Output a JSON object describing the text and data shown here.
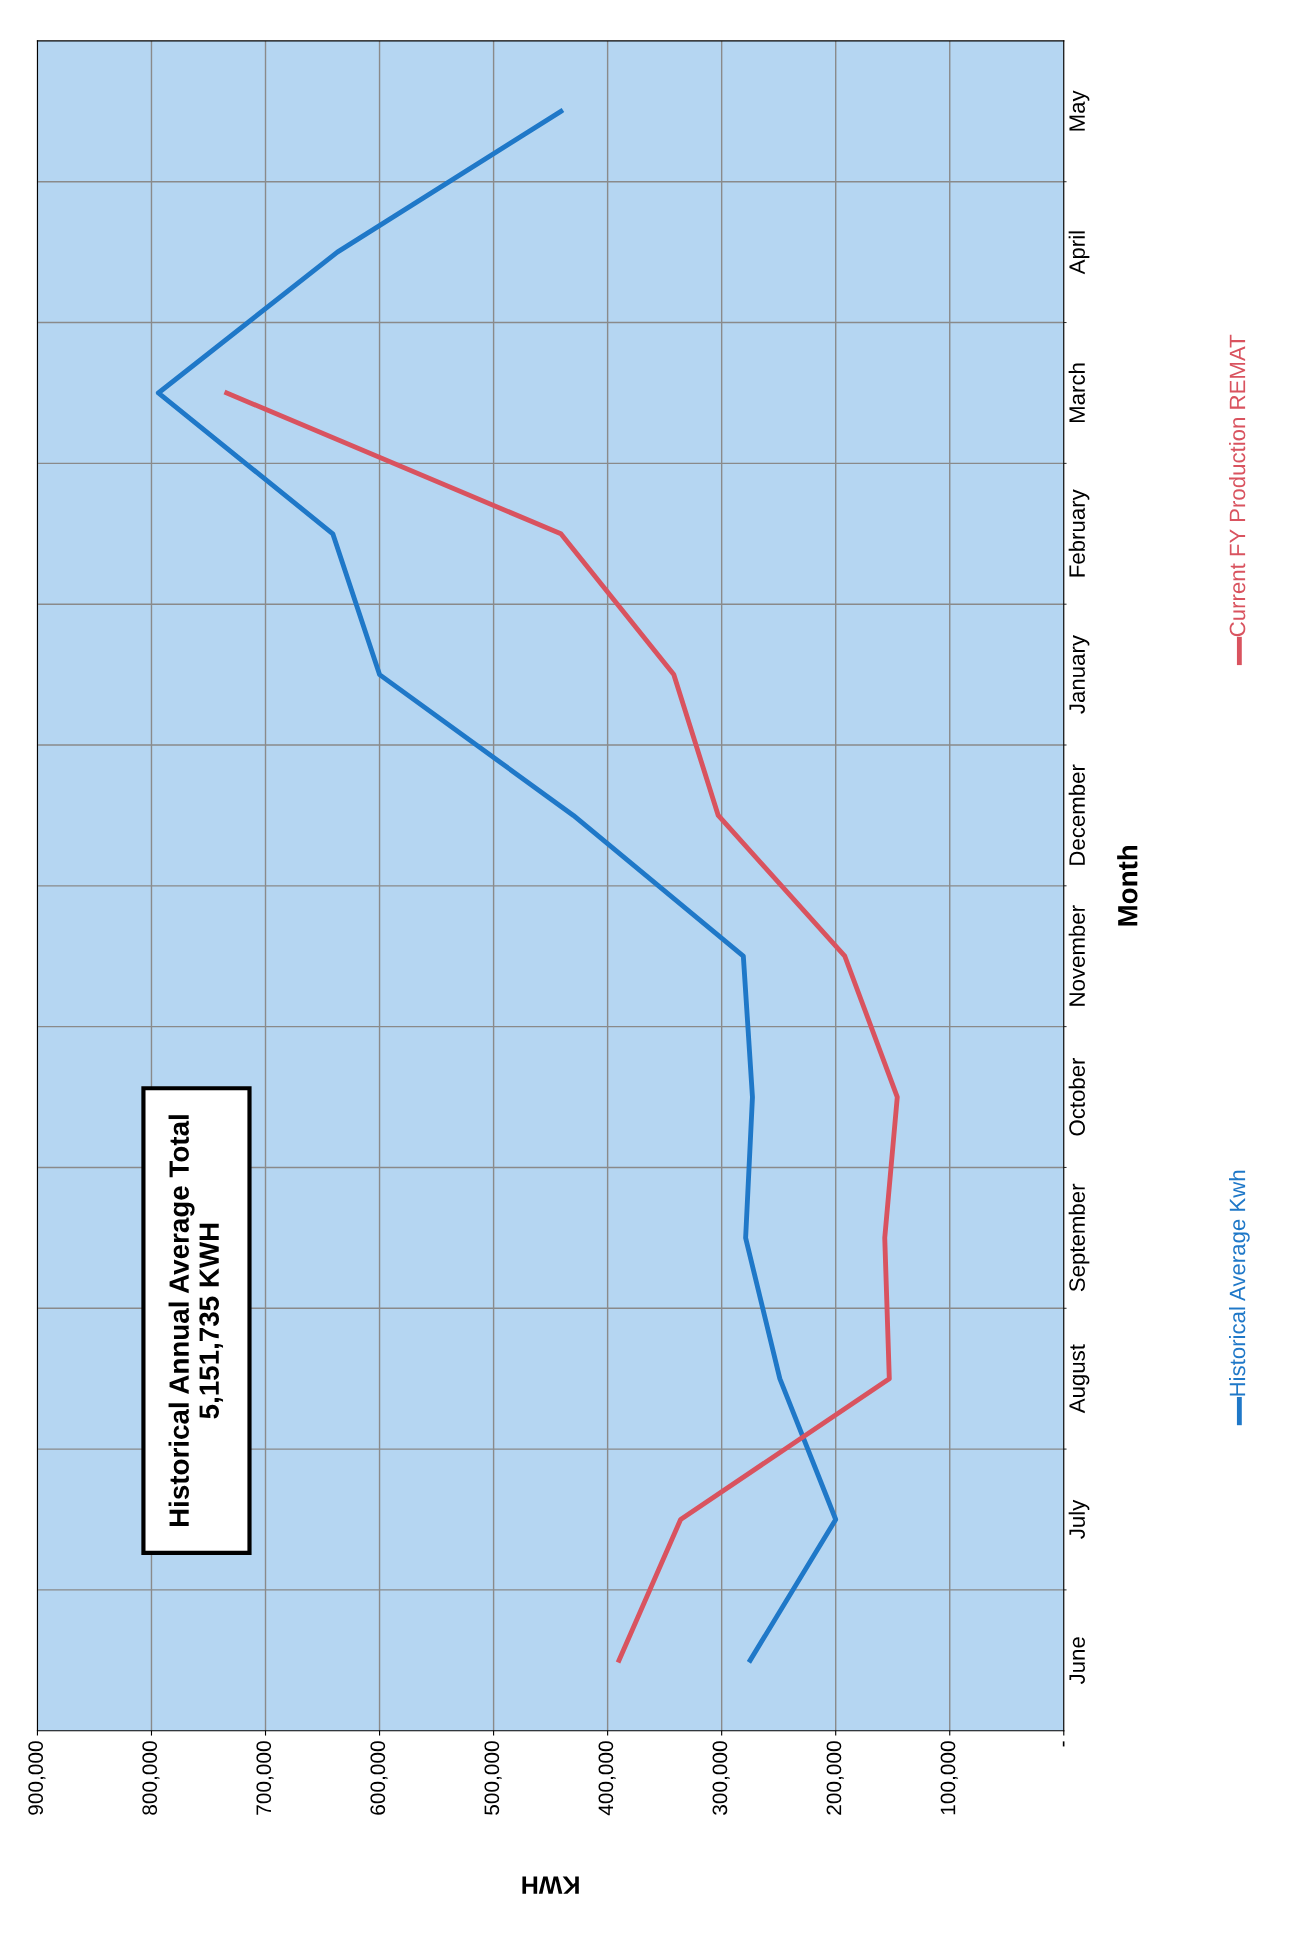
{
  "chart_data": {
    "type": "line",
    "orientation": "horizontal",
    "xlabel": "KWH",
    "ylabel": "Month",
    "categories": [
      "May",
      "April",
      "March",
      "February",
      "January",
      "December",
      "November",
      "October",
      "September",
      "August",
      "July",
      "June"
    ],
    "series": [
      {
        "name": "Historical Average Kwh",
        "color": "#1f78c8",
        "values": [
          441000,
          637000,
          794000,
          641000,
          600000,
          430000,
          281000,
          273000,
          279000,
          249000,
          200000,
          275000
        ]
      },
      {
        "name": "Current FY Production REMAT",
        "color": "#d9535f",
        "values": [
          null,
          null,
          734000,
          441000,
          342000,
          303000,
          192000,
          146000,
          157000,
          153000,
          336000,
          390000
        ]
      }
    ],
    "xlim": [
      900000,
      0
    ],
    "xticks": [
      {
        "value": 0,
        "label": "-"
      },
      {
        "value": 100000,
        "label": "100,000"
      },
      {
        "value": 200000,
        "label": "200,000"
      },
      {
        "value": 300000,
        "label": "300,000"
      },
      {
        "value": 400000,
        "label": "400,000"
      },
      {
        "value": 500000,
        "label": "500,000"
      },
      {
        "value": 600000,
        "label": "600,000"
      },
      {
        "value": 700000,
        "label": "700,000"
      },
      {
        "value": 800000,
        "label": "800,000"
      },
      {
        "value": 900000,
        "label": "900,000"
      }
    ],
    "grid": true,
    "legend": "right",
    "annotations": [
      "Historical Annual Average Total\n5,151,735 KWH"
    ]
  }
}
